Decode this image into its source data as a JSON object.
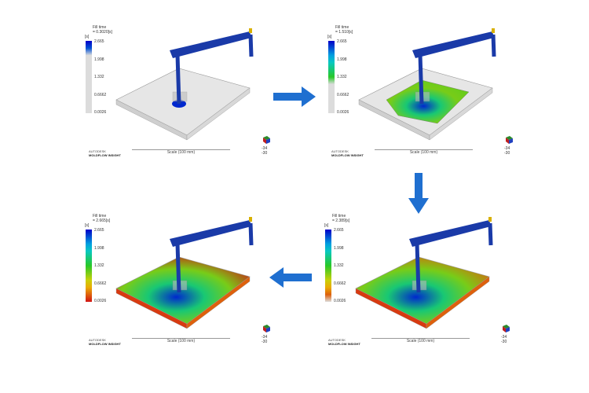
{
  "legend_title": "Fill time",
  "legend_unit": "[s]",
  "legend_ticks": [
    "2.665",
    "1.998",
    "1.332",
    "0.6662",
    "0.0026"
  ],
  "logo": {
    "line1": "AUTODESK",
    "line2": "MOLDFLOW INSIGHT"
  },
  "scale_label": "Scale (100 mm)",
  "triad": {
    "z": "Z",
    "x": "X",
    "y": "Y",
    "v1": "-34",
    "v2": "-30"
  },
  "panels": [
    {
      "time": "= 0.3020[s]",
      "fill_fraction": 0.11
    },
    {
      "time": "= 1.510[s]",
      "fill_fraction": 0.57
    },
    {
      "time": "= 2.389[s]",
      "fill_fraction": 0.9
    },
    {
      "time": "= 2.665[s]",
      "fill_fraction": 1.0
    }
  ],
  "colors": {
    "arrow": "#1f6fd0",
    "runner": "#1a3aa8",
    "unfilled": "#dcdcdc"
  }
}
